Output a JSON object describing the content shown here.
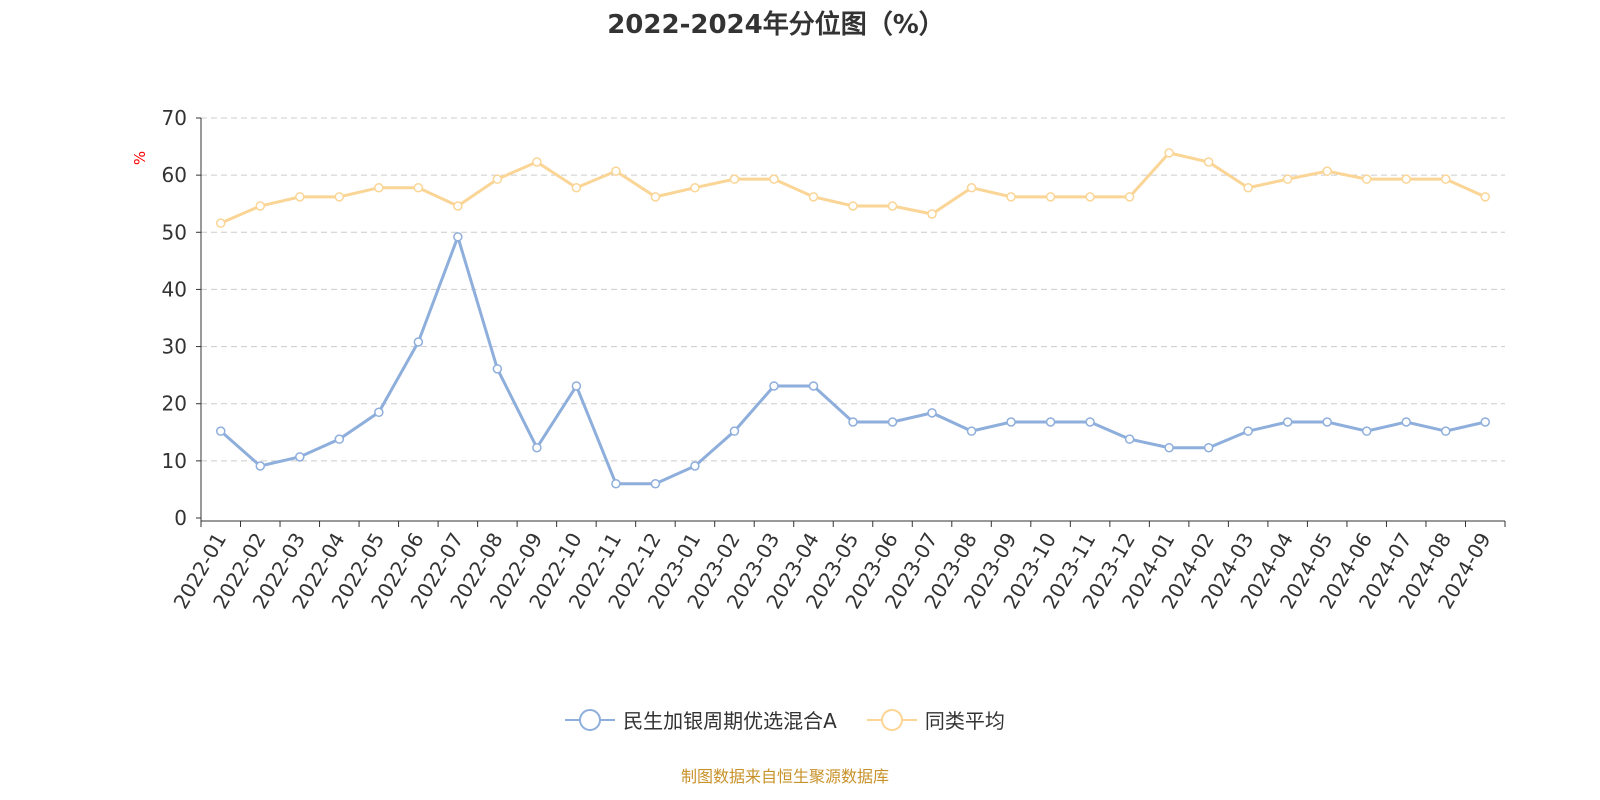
{
  "colors": {
    "series1": "#8eaedc",
    "series2": "#fad596",
    "grid": "#cccccc",
    "axis": "#333333",
    "unit": "#ff0000"
  },
  "footer": "制图数据来自恒生聚源数据库",
  "chart_data": {
    "type": "line",
    "title": "2022-2024年分位图（%）",
    "ylabel": "%",
    "ylim": [
      0,
      70
    ],
    "yticks": [
      0,
      10,
      20,
      30,
      40,
      50,
      60,
      70
    ],
    "grid": true,
    "legend_position": "bottom",
    "categories": [
      "2022-01",
      "2022-02",
      "2022-03",
      "2022-04",
      "2022-05",
      "2022-06",
      "2022-07",
      "2022-08",
      "2022-09",
      "2022-10",
      "2022-11",
      "2022-12",
      "2023-01",
      "2023-02",
      "2023-03",
      "2023-04",
      "2023-05",
      "2023-06",
      "2023-07",
      "2023-08",
      "2023-09",
      "2023-10",
      "2023-11",
      "2023-12",
      "2024-01",
      "2024-02",
      "2024-03",
      "2024-04",
      "2024-05",
      "2024-06",
      "2024-07",
      "2024-08",
      "2024-09"
    ],
    "series": [
      {
        "name": "民生加银周期优选混合A",
        "values": [
          15.2,
          9.1,
          10.7,
          13.8,
          18.5,
          30.8,
          49.2,
          26.1,
          12.3,
          23.1,
          6.0,
          6.0,
          9.1,
          15.2,
          23.1,
          23.1,
          16.8,
          16.8,
          18.4,
          15.2,
          16.8,
          16.8,
          16.8,
          13.8,
          12.3,
          12.3,
          15.2,
          16.8,
          16.8,
          15.2,
          16.8,
          15.2,
          16.8
        ]
      },
      {
        "name": "同类平均",
        "values": [
          51.6,
          54.6,
          56.2,
          56.2,
          57.8,
          57.8,
          54.6,
          59.3,
          62.3,
          57.8,
          60.7,
          56.2,
          57.8,
          59.3,
          59.3,
          56.2,
          54.6,
          54.6,
          53.2,
          57.8,
          56.2,
          56.2,
          56.2,
          56.2,
          63.9,
          62.3,
          57.8,
          59.3,
          60.7,
          59.3,
          59.3,
          59.3,
          56.2
        ]
      }
    ]
  }
}
